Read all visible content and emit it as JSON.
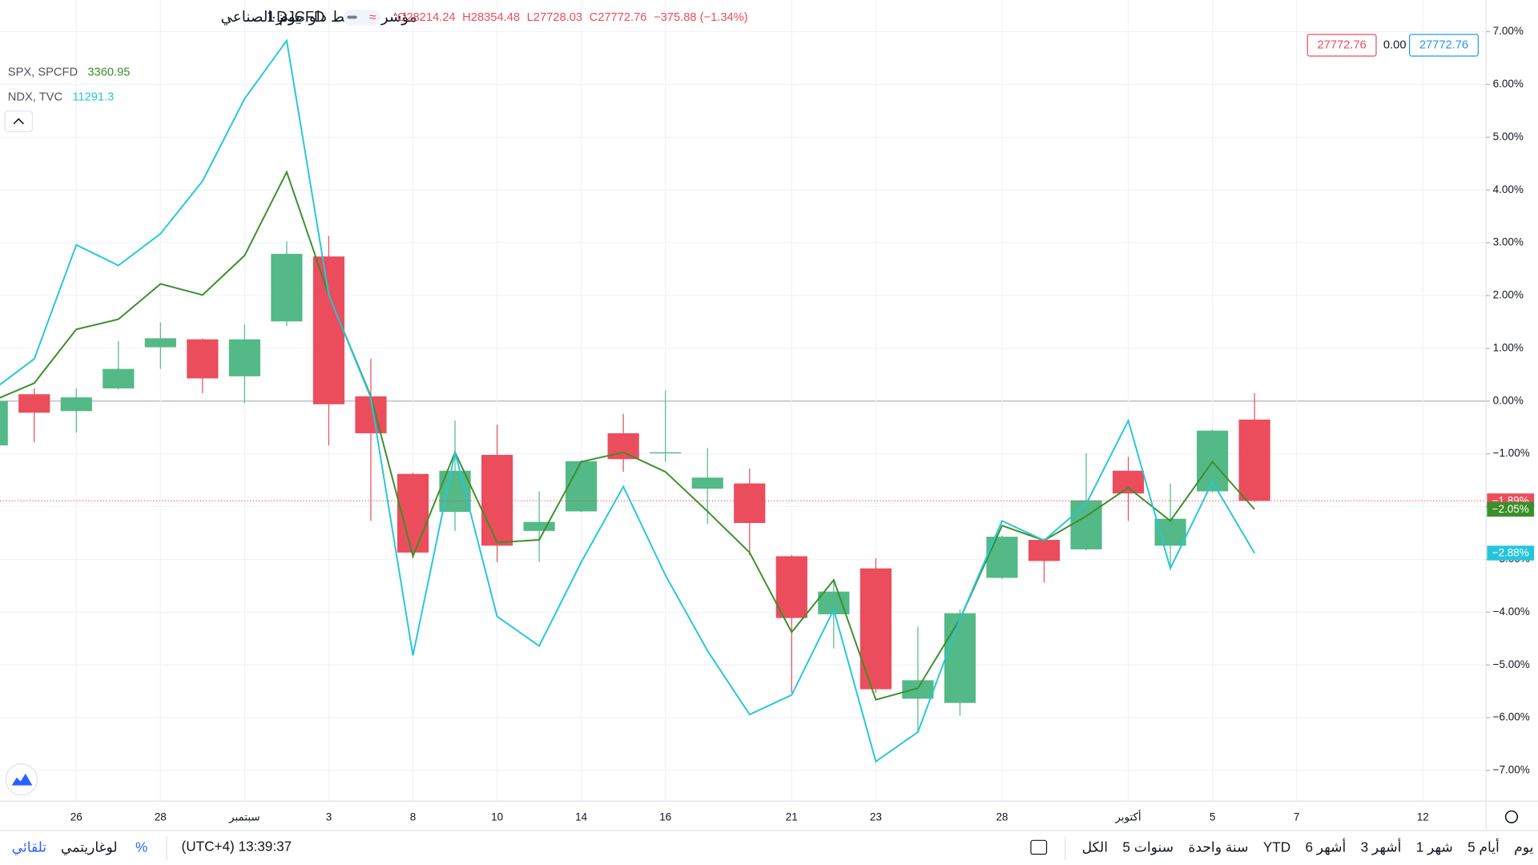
{
  "header": {
    "symbol": "DJCFD",
    "interval": "يوم 1",
    "title": "مؤشر متوسط داو جونز الصناعي",
    "ohlc": [
      "O28214.24",
      "H28354.48",
      "L27728.03",
      "C27772.76",
      "−375.88 (−1.34%)"
    ],
    "price_boxes": [
      "27772.76",
      "0.00",
      "27772.76"
    ]
  },
  "chart_data": {
    "type": "candlestick",
    "categories": [
      null,
      null,
      "26",
      null,
      "28",
      null,
      "سبتمبر",
      null,
      "3",
      null,
      "8",
      null,
      "10",
      null,
      "14",
      null,
      "16",
      null,
      null,
      "21",
      null,
      "23",
      null,
      null,
      "28",
      null,
      null,
      "أكتوبر",
      null,
      "5",
      null,
      "7",
      null,
      null,
      "12"
    ],
    "open": [
      -0.84,
      0.13,
      -0.19,
      0.24,
      1.02,
      1.17,
      0.47,
      1.51,
      2.74,
      0.09,
      -1.38,
      -2.1,
      -1.02,
      -2.46,
      -2.09,
      -0.61,
      -0.99,
      -1.66,
      -1.56,
      -2.94,
      -4.04,
      -3.17,
      -5.64,
      -5.72,
      -3.35,
      -2.63,
      -2.81,
      -1.32,
      -2.74,
      -1.71,
      -0.35,
      null,
      null,
      null,
      null
    ],
    "high": [
      0.05,
      0.24,
      0.24,
      1.14,
      1.49,
      1.19,
      1.45,
      3.03,
      3.13,
      0.8,
      -1.36,
      -0.37,
      -0.45,
      -1.71,
      -1.12,
      -0.24,
      0.2,
      -0.89,
      -1.28,
      -2.92,
      -3.39,
      -2.98,
      -4.28,
      -3.95,
      -2.55,
      -2.6,
      -0.99,
      -1.06,
      -1.56,
      -0.54,
      0.15,
      null,
      null,
      null,
      null
    ],
    "low": [
      -0.85,
      -0.78,
      -0.6,
      0.22,
      0.61,
      0.15,
      -0.04,
      1.42,
      -0.84,
      -2.27,
      -2.98,
      -2.46,
      -3.05,
      -3.05,
      -2.1,
      -1.34,
      -1.15,
      -2.33,
      -2.92,
      -5.53,
      -4.69,
      -5.53,
      -6.27,
      -5.96,
      -3.37,
      -3.44,
      -2.83,
      -2.27,
      -3.2,
      -1.73,
      -1.91,
      null,
      null,
      null,
      null
    ],
    "close": [
      0.0,
      -0.22,
      0.07,
      0.61,
      1.19,
      0.43,
      1.17,
      2.79,
      -0.06,
      -0.61,
      -2.87,
      -1.32,
      -2.74,
      -2.29,
      -1.14,
      -1.1,
      -0.97,
      -1.45,
      -2.31,
      -4.11,
      -3.61,
      -5.46,
      -5.29,
      -4.02,
      -2.57,
      -3.03,
      -1.88,
      -1.75,
      -2.23,
      -0.56,
      -1.89,
      null,
      null,
      null,
      null
    ],
    "last_close_label": "−1.89%",
    "up_color": "#53b987",
    "down_color": "#eb4d5c",
    "series": [
      {
        "name": "SPX, SPCFD",
        "last_value": 3360.95,
        "end_label": "−2.05%",
        "color": "#3a8f2a",
        "values": [
          0.0,
          0.34,
          1.36,
          1.55,
          2.22,
          2.01,
          2.76,
          4.34,
          2.01,
          0.09,
          -2.94,
          -0.97,
          -2.68,
          -2.63,
          -1.15,
          -0.97,
          -1.34,
          -2.09,
          -2.87,
          -4.38,
          -3.39,
          -5.66,
          -5.44,
          -4.13,
          -2.36,
          -2.64,
          -2.18,
          -1.64,
          -2.27,
          -1.15,
          -2.05,
          null,
          null,
          null,
          null
        ]
      },
      {
        "name": "NDX, TVC",
        "last_value": 11291.3,
        "end_label": "−2.88%",
        "color": "#26c6da",
        "values": [
          0.2,
          0.8,
          2.96,
          2.57,
          3.17,
          4.17,
          5.73,
          6.83,
          2.01,
          0.06,
          -4.82,
          -0.97,
          -4.08,
          -4.64,
          -3.05,
          -1.62,
          -3.3,
          -4.73,
          -5.94,
          -5.57,
          -3.95,
          -6.83,
          -6.27,
          -4.13,
          -2.27,
          -2.64,
          -1.95,
          -0.37,
          -3.17,
          -1.53,
          -2.88,
          null,
          null,
          null,
          null
        ]
      }
    ],
    "ylim": [
      -7.58,
      7.6
    ],
    "yticks": [
      {
        "value": -7,
        "label": "−7.00%"
      },
      {
        "value": -6,
        "label": "−6.00%"
      },
      {
        "value": -5,
        "label": "−5.00%"
      },
      {
        "value": -4,
        "label": "−4.00%"
      },
      {
        "value": -3,
        "label": "−3.00%"
      },
      {
        "value": -2,
        "label": "−2.00%"
      },
      {
        "value": -1,
        "label": "−1.00%"
      },
      {
        "value": 0,
        "label": "0.00%"
      },
      {
        "value": 1,
        "label": "1.00%"
      },
      {
        "value": 2,
        "label": "2.00%"
      },
      {
        "value": 3,
        "label": "3.00%"
      },
      {
        "value": 4,
        "label": "4.00%"
      },
      {
        "value": 5,
        "label": "5.00%"
      },
      {
        "value": 6,
        "label": "6.00%"
      },
      {
        "value": 7,
        "label": "7.00%"
      }
    ],
    "grid": true
  },
  "toolbar": {
    "ranges": [
      "الكل",
      "5 سنوات",
      "سنة واحدة",
      "YTD",
      "6 أشهر",
      "3 أشهر",
      "1 شهر",
      "5 أيام",
      "يوم"
    ],
    "clock": "(UTC+4) 13:39:37",
    "percent": "%",
    "log": "لوغاريتمي",
    "auto": "تلقائي"
  }
}
